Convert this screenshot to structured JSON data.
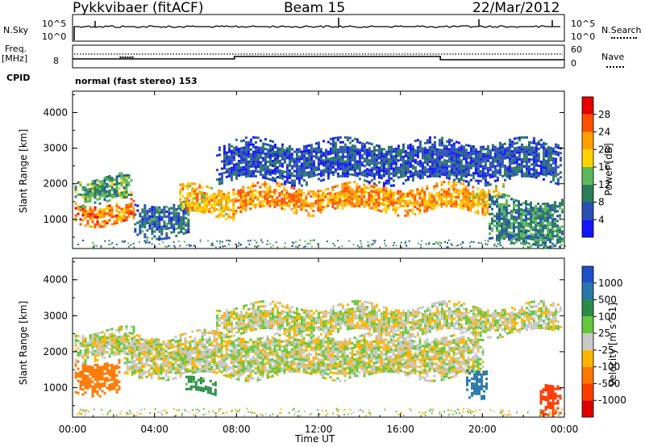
{
  "header": {
    "title_left": "Pykkvibaer (fitACF)",
    "title_center": "Beam 15",
    "title_right": "22/Mar/2012"
  },
  "small_panels": {
    "nsky_label": "N.Sky",
    "nsky_ticks": [
      "10^5",
      "10^0"
    ],
    "nsearch_ticks": [
      "10^5",
      "10^0"
    ],
    "nsearch_label": "N.Search",
    "freq_label_line1": "Freq.",
    "freq_label_line2": "[MHz]",
    "freq_tick": "8",
    "nave_ticks": [
      "60",
      "0"
    ],
    "nave_label": "Nave",
    "cpid_label": "CPID",
    "cpid_text": "normal (fast stereo) 153"
  },
  "chart_data": [
    {
      "type": "heatmap",
      "name": "Power",
      "xlabel": "Time UT",
      "ylabel": "Slant Range [km]",
      "xticks": [
        "00:00",
        "04:00",
        "08:00",
        "12:00",
        "16:00",
        "20:00",
        "00:00"
      ],
      "xlim_hours": [
        0,
        24
      ],
      "yticks": [
        1000,
        2000,
        3000,
        4000
      ],
      "ylim": [
        180,
        4600
      ],
      "colorbar_label": "Power [dB]",
      "colorbar_ticks": [
        4,
        8,
        12,
        16,
        20,
        24,
        28
      ],
      "colorbar_colors": [
        "#1414ff",
        "#2850b4",
        "#2a7d5a",
        "#5cb85c",
        "#ffd200",
        "#ffa000",
        "#ff5000",
        "#e60000"
      ],
      "regions": [
        {
          "t": [
            0.1,
            3.0
          ],
          "r": [
            950,
            1500
          ],
          "level": 24
        },
        {
          "t": [
            0.1,
            2.9
          ],
          "r": [
            1500,
            2200
          ],
          "level": 12
        },
        {
          "t": [
            3.0,
            5.6
          ],
          "r": [
            600,
            1500
          ],
          "level": 8
        },
        {
          "t": [
            5.2,
            7.8
          ],
          "r": [
            1100,
            1900
          ],
          "level": 20
        },
        {
          "t": [
            7.8,
            20.2
          ],
          "r": [
            1250,
            1950
          ],
          "level": 22
        },
        {
          "t": [
            7.0,
            23.8
          ],
          "r": [
            2100,
            3200
          ],
          "level": 6
        },
        {
          "t": [
            19.2,
            21.0
          ],
          "r": [
            1500,
            1900
          ],
          "level": 18
        },
        {
          "t": [
            20.3,
            23.9
          ],
          "r": [
            300,
            1600
          ],
          "level": 10
        }
      ]
    },
    {
      "type": "heatmap",
      "name": "Velocity",
      "xlabel": "Time UT",
      "ylabel": "Slant Range [km]",
      "xticks": [
        "00:00",
        "04:00",
        "08:00",
        "12:00",
        "16:00",
        "20:00",
        "00:00"
      ],
      "xlim_hours": [
        0,
        24
      ],
      "yticks": [
        1000,
        2000,
        3000,
        4000
      ],
      "ylim": [
        180,
        4600
      ],
      "colorbar_label": "Velocity [m s^-1]",
      "colorbar_ticks": [
        1000,
        500,
        100,
        25,
        -25,
        -100,
        -500,
        -1000
      ],
      "colorbar_colors": [
        "#1e50c8",
        "#2878aa",
        "#2a8c46",
        "#64c83c",
        "#c8c8c8",
        "#ffb400",
        "#ff7800",
        "#ff3c00",
        "#dc0000"
      ],
      "regions": [
        {
          "t": [
            0.1,
            2.3
          ],
          "r": [
            900,
            1800
          ],
          "level": -200
        },
        {
          "t": [
            0.1,
            3.0
          ],
          "r": [
            1800,
            2600
          ],
          "level": 0
        },
        {
          "t": [
            2.5,
            20.0
          ],
          "r": [
            1300,
            2500
          ],
          "level": 0
        },
        {
          "t": [
            5.5,
            7.0
          ],
          "r": [
            800,
            1200
          ],
          "level": 150
        },
        {
          "t": [
            7.0,
            23.8
          ],
          "r": [
            2500,
            3300
          ],
          "level": 0
        },
        {
          "t": [
            19.2,
            20.2
          ],
          "r": [
            800,
            1600
          ],
          "level": 600
        },
        {
          "t": [
            22.8,
            23.8
          ],
          "r": [
            300,
            1200
          ],
          "level": -600
        }
      ]
    }
  ]
}
